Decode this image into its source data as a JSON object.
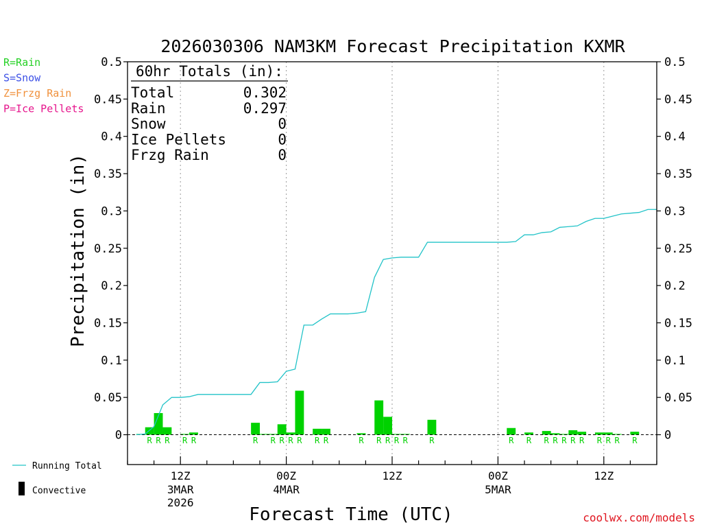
{
  "chart_data": {
    "type": "bar",
    "title": "2026030306 NAM3KM Forecast Precipitation KXMR",
    "xlabel": "Forecast Time (UTC)",
    "ylabel": "Precipitation (in)",
    "ylim": [
      -0.04,
      0.5
    ],
    "yticks": [
      0,
      0.05,
      0.1,
      0.15,
      0.2,
      0.25,
      0.3,
      0.35,
      0.4,
      0.45,
      0.5
    ],
    "ytick_labels": [
      "0",
      "0.05",
      "0.1",
      "0.15",
      "0.2",
      "0.25",
      "0.3",
      "0.35",
      "0.4",
      "0.45",
      "0.5"
    ],
    "x_range_hours": [
      0,
      60
    ],
    "x_major": [
      {
        "hour": 6,
        "label": "12Z",
        "sub1": "3MAR",
        "sub2": "2026"
      },
      {
        "hour": 18,
        "label": "00Z",
        "sub1": "4MAR",
        "sub2": ""
      },
      {
        "hour": 30,
        "label": "12Z",
        "sub1": "",
        "sub2": ""
      },
      {
        "hour": 42,
        "label": "00Z",
        "sub1": "5MAR",
        "sub2": ""
      },
      {
        "hour": 54,
        "label": "12Z",
        "sub1": "",
        "sub2": ""
      }
    ],
    "totals": {
      "heading": "60hr Totals (in):",
      "rows": [
        {
          "label": "Total",
          "value": "0.302"
        },
        {
          "label": "Rain",
          "value": "0.297"
        },
        {
          "label": "Snow",
          "value": "0"
        },
        {
          "label": "Ice Pellets",
          "value": "0"
        },
        {
          "label": "Frzg Rain",
          "value": "0"
        }
      ]
    },
    "ptype_legend": [
      {
        "text": "R=Rain",
        "color": "#22d022"
      },
      {
        "text": "S=Snow",
        "color": "#3c50e6"
      },
      {
        "text": "Z=Frzg Rain",
        "color": "#f0913c"
      },
      {
        "text": "P=Ice Pellets",
        "color": "#e6148c"
      }
    ],
    "series_legend": [
      {
        "name": "Running Total",
        "color": "#22c3c8"
      },
      {
        "name": "Convective",
        "color": "#000000"
      }
    ],
    "bar_color": "#00d200",
    "line_color": "#22c3c8",
    "bars": [
      {
        "hour": 2,
        "value": 0.001
      },
      {
        "hour": 3,
        "value": 0.01,
        "ptype": "R"
      },
      {
        "hour": 4,
        "value": 0.029,
        "ptype": "R"
      },
      {
        "hour": 5,
        "value": 0.01,
        "ptype": "R"
      },
      {
        "hour": 6,
        "value": 0.0
      },
      {
        "hour": 7,
        "value": 0.001,
        "ptype": "R"
      },
      {
        "hour": 8,
        "value": 0.003,
        "ptype": "R"
      },
      {
        "hour": 15,
        "value": 0.016,
        "ptype": "R"
      },
      {
        "hour": 16,
        "value": 0.001
      },
      {
        "hour": 17,
        "value": 0.001,
        "ptype": "R"
      },
      {
        "hour": 18,
        "value": 0.014,
        "ptype": "R"
      },
      {
        "hour": 19,
        "value": 0.003,
        "ptype": "R"
      },
      {
        "hour": 20,
        "value": 0.059,
        "ptype": "R"
      },
      {
        "hour": 22,
        "value": 0.008,
        "ptype": "R"
      },
      {
        "hour": 23,
        "value": 0.008,
        "ptype": "R"
      },
      {
        "hour": 27,
        "value": 0.002,
        "ptype": "R"
      },
      {
        "hour": 29,
        "value": 0.046,
        "ptype": "R"
      },
      {
        "hour": 30,
        "value": 0.024,
        "ptype": "R"
      },
      {
        "hour": 31,
        "value": 0.001,
        "ptype": "R"
      },
      {
        "hour": 32,
        "value": 0.001,
        "ptype": "R"
      },
      {
        "hour": 35,
        "value": 0.02,
        "ptype": "R"
      },
      {
        "hour": 44,
        "value": 0.009,
        "ptype": "R"
      },
      {
        "hour": 46,
        "value": 0.003,
        "ptype": "R"
      },
      {
        "hour": 48,
        "value": 0.005,
        "ptype": "R"
      },
      {
        "hour": 49,
        "value": 0.002,
        "ptype": "R"
      },
      {
        "hour": 50,
        "value": 0.001,
        "ptype": "R"
      },
      {
        "hour": 51,
        "value": 0.006,
        "ptype": "R"
      },
      {
        "hour": 52,
        "value": 0.004,
        "ptype": "R"
      },
      {
        "hour": 54,
        "value": 0.003,
        "ptype": "R"
      },
      {
        "hour": 55,
        "value": 0.003,
        "ptype": "R"
      },
      {
        "hour": 56,
        "value": 0.001,
        "ptype": "R"
      },
      {
        "hour": 58,
        "value": 0.004,
        "ptype": "R"
      }
    ],
    "running_total": {
      "x": [
        1,
        2,
        3,
        4,
        5,
        6,
        7,
        8,
        9,
        14,
        15,
        16,
        17,
        18,
        19,
        20,
        21,
        22,
        23,
        24,
        25,
        26,
        27,
        28,
        29,
        30,
        31,
        32,
        33,
        34,
        35,
        36,
        43,
        44,
        45,
        46,
        47,
        48,
        49,
        50,
        51,
        52,
        53,
        54,
        55,
        56,
        57,
        58,
        59,
        60
      ],
      "y": [
        0.0,
        0.001,
        0.011,
        0.04,
        0.05,
        0.05,
        0.051,
        0.054,
        0.054,
        0.054,
        0.07,
        0.07,
        0.071,
        0.085,
        0.088,
        0.147,
        0.147,
        0.155,
        0.162,
        0.162,
        0.162,
        0.163,
        0.165,
        0.211,
        0.235,
        0.237,
        0.238,
        0.238,
        0.238,
        0.258,
        0.258,
        0.258,
        0.258,
        0.259,
        0.268,
        0.268,
        0.271,
        0.272,
        0.278,
        0.279,
        0.28,
        0.286,
        0.29,
        0.29,
        0.293,
        0.296,
        0.297,
        0.298,
        0.302,
        0.302
      ]
    }
  },
  "credit": "coolwx.com/models"
}
